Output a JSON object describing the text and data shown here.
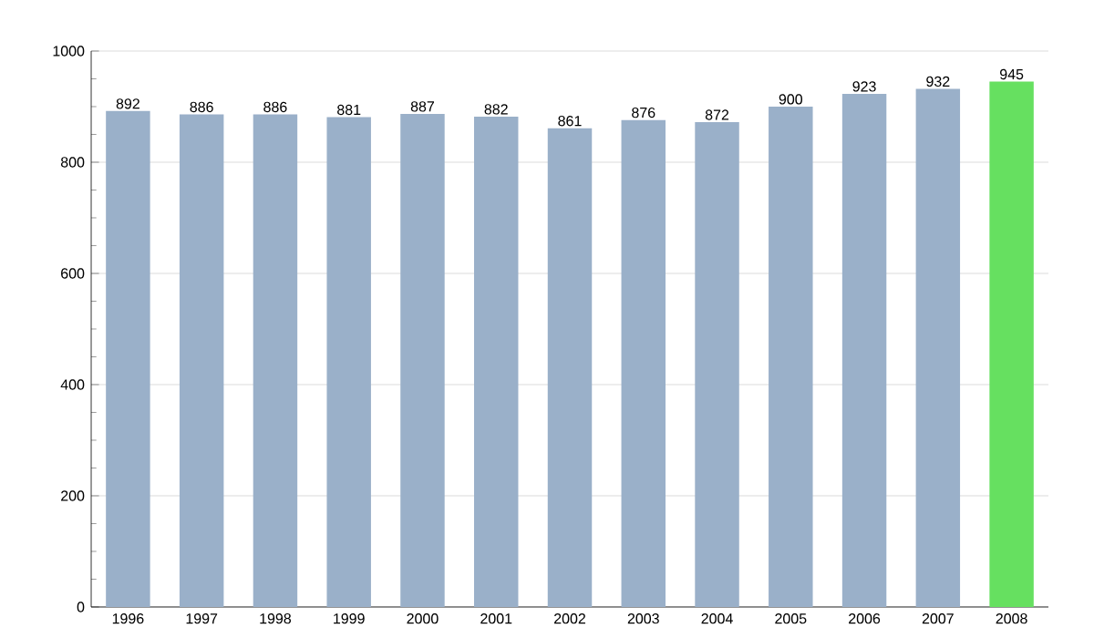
{
  "chart_data": {
    "type": "bar",
    "categories": [
      "1996",
      "1997",
      "1998",
      "1999",
      "2000",
      "2001",
      "2002",
      "2003",
      "2004",
      "2005",
      "2006",
      "2007",
      "2008"
    ],
    "values": [
      892,
      886,
      886,
      881,
      887,
      882,
      861,
      876,
      872,
      900,
      923,
      932,
      945
    ],
    "colors": [
      "#9ab0c9",
      "#9ab0c9",
      "#9ab0c9",
      "#9ab0c9",
      "#9ab0c9",
      "#9ab0c9",
      "#9ab0c9",
      "#9ab0c9",
      "#9ab0c9",
      "#9ab0c9",
      "#9ab0c9",
      "#9ab0c9",
      "#66e060"
    ],
    "ylim": [
      0,
      1000
    ],
    "yticks": [
      0,
      200,
      400,
      600,
      800,
      1000
    ],
    "grid": "y",
    "data_labels": true
  }
}
